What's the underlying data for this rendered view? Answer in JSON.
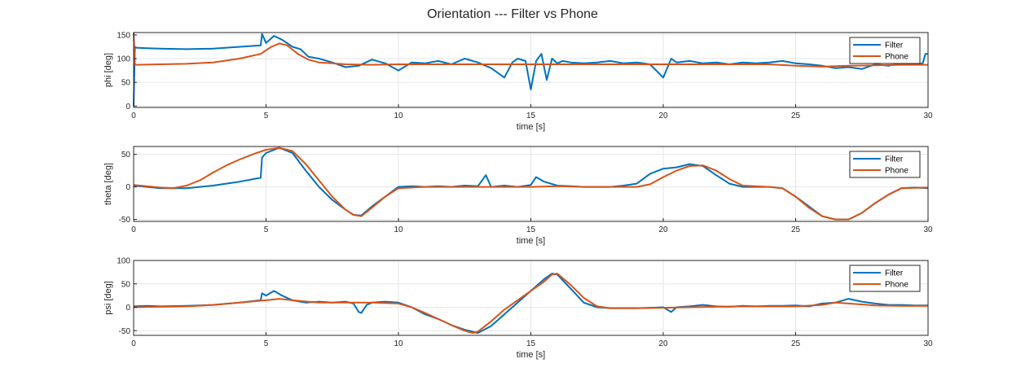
{
  "figure_title": "Orientation --- Filter vs Phone",
  "colors": {
    "filter": "#0072BD",
    "phone": "#D95319",
    "grid": "#e6e6e6",
    "axis": "#262626"
  },
  "chart_data": [
    {
      "type": "line",
      "xlabel": "time [s]",
      "ylabel": "phi [deg]",
      "xlim": [
        0,
        30
      ],
      "ylim": [
        -3,
        155
      ],
      "xticks": [
        0,
        5,
        10,
        15,
        20,
        25,
        30
      ],
      "yticks": [
        0,
        50,
        100,
        150
      ],
      "grid": true,
      "legend": "top-right",
      "series": [
        {
          "name": "Filter",
          "color": "#0072BD",
          "x": [
            0,
            0.05,
            0.1,
            0.5,
            1,
            2,
            3,
            4,
            4.8,
            4.85,
            5,
            5.3,
            5.6,
            6,
            6.3,
            6.6,
            7,
            7.5,
            8,
            8.5,
            9,
            9.5,
            10,
            10.5,
            11,
            11.5,
            12,
            12.5,
            13,
            13.5,
            14,
            14.3,
            14.5,
            14.8,
            15,
            15.2,
            15.4,
            15.6,
            15.8,
            16,
            16.2,
            16.5,
            17,
            17.5,
            18,
            18.5,
            19,
            19.5,
            20,
            20.3,
            20.5,
            21,
            21.5,
            22,
            22.5,
            23,
            23.5,
            24,
            24.5,
            25,
            25.5,
            26,
            26.5,
            27,
            27.5,
            28,
            28.5,
            29,
            29.5,
            29.8,
            29.9,
            30
          ],
          "y": [
            0,
            125,
            123,
            122,
            121,
            120,
            121,
            125,
            128,
            152,
            133,
            148,
            140,
            125,
            120,
            104,
            100,
            92,
            82,
            85,
            98,
            90,
            75,
            92,
            90,
            95,
            88,
            100,
            92,
            80,
            60,
            92,
            100,
            95,
            35,
            95,
            110,
            55,
            100,
            90,
            95,
            92,
            90,
            92,
            95,
            90,
            92,
            88,
            60,
            100,
            92,
            95,
            90,
            92,
            88,
            92,
            90,
            92,
            95,
            90,
            88,
            85,
            80,
            82,
            78,
            88,
            85,
            90,
            88,
            90,
            110,
            110
          ]
        },
        {
          "name": "Phone",
          "color": "#D95319",
          "x": [
            0,
            0.05,
            0.1,
            1,
            2,
            3,
            4,
            4.8,
            5.2,
            5.5,
            5.8,
            6.2,
            6.6,
            7,
            7.5,
            8,
            9,
            10,
            11,
            12,
            13,
            14,
            15,
            16,
            17,
            18,
            19,
            20,
            21,
            22,
            23,
            24,
            25,
            26,
            27,
            28,
            29,
            30
          ],
          "y": [
            155,
            88,
            87,
            88,
            89,
            92,
            100,
            110,
            125,
            132,
            128,
            110,
            98,
            92,
            90,
            88,
            87,
            88,
            88,
            88,
            88,
            88,
            88,
            88,
            88,
            88,
            88,
            88,
            88,
            88,
            88,
            88,
            85,
            83,
            85,
            86,
            87,
            87
          ]
        }
      ]
    },
    {
      "type": "line",
      "xlabel": "time [s]",
      "ylabel": "theta [deg]",
      "xlim": [
        0,
        30
      ],
      "ylim": [
        -53,
        62
      ],
      "xticks": [
        0,
        5,
        10,
        15,
        20,
        25,
        30
      ],
      "yticks": [
        -50,
        0,
        50
      ],
      "grid": true,
      "legend": "top-right",
      "series": [
        {
          "name": "Filter",
          "color": "#0072BD",
          "x": [
            0,
            0.5,
            1,
            1.5,
            2,
            3,
            4,
            4.8,
            4.85,
            5,
            5.5,
            6,
            6.5,
            7,
            7.5,
            8,
            8.3,
            8.6,
            9,
            9.5,
            10,
            10.5,
            11,
            11.5,
            12,
            12.5,
            13,
            13.3,
            13.5,
            14,
            14.5,
            15,
            15.2,
            15.5,
            16,
            16.5,
            17,
            17.5,
            18,
            18.5,
            19,
            19.5,
            20,
            20.5,
            21,
            21.5,
            22,
            22.5,
            23,
            23.5,
            24,
            24.5,
            25,
            25.5,
            26,
            26.5,
            27,
            27.5,
            28,
            28.5,
            29,
            29.5,
            30
          ],
          "y": [
            2,
            0,
            -2,
            -2,
            -2,
            2,
            8,
            14,
            45,
            52,
            60,
            52,
            25,
            0,
            -20,
            -35,
            -43,
            -44,
            -30,
            -15,
            0,
            1,
            0,
            1,
            0,
            2,
            1,
            18,
            0,
            2,
            0,
            3,
            15,
            8,
            2,
            1,
            0,
            0,
            0,
            2,
            5,
            20,
            28,
            30,
            35,
            32,
            18,
            5,
            0,
            0,
            0,
            -2,
            -15,
            -30,
            -45,
            -50,
            -50,
            -40,
            -25,
            -12,
            -2,
            -1,
            -2
          ]
        },
        {
          "name": "Phone",
          "color": "#D95319",
          "x": [
            0,
            1,
            1.5,
            2,
            2.5,
            3,
            3.5,
            4,
            4.5,
            5,
            5.5,
            6,
            6.5,
            7,
            7.5,
            8,
            8.3,
            8.6,
            9,
            9.5,
            10,
            11,
            12,
            13,
            14,
            15,
            16,
            17,
            18,
            19,
            19.5,
            20,
            20.5,
            21,
            21.5,
            22,
            22.5,
            23,
            24,
            24.5,
            25,
            25.5,
            26,
            26.5,
            27,
            27.5,
            28,
            28.5,
            29,
            30
          ],
          "y": [
            3,
            -1,
            -2,
            2,
            10,
            22,
            33,
            42,
            50,
            57,
            60,
            55,
            35,
            10,
            -15,
            -35,
            -43,
            -45,
            -32,
            -15,
            -2,
            0,
            0,
            0,
            0,
            0,
            1,
            0,
            0,
            0,
            4,
            15,
            25,
            32,
            33,
            25,
            12,
            2,
            0,
            -2,
            -15,
            -32,
            -45,
            -50,
            -50,
            -40,
            -25,
            -12,
            -2,
            -1
          ]
        }
      ]
    },
    {
      "type": "line",
      "xlabel": "time [s]",
      "ylabel": "psi [deg]",
      "xlim": [
        0,
        30
      ],
      "ylim": [
        -60,
        100
      ],
      "xticks": [
        0,
        5,
        10,
        15,
        20,
        25,
        30
      ],
      "yticks": [
        -50,
        0,
        50,
        100
      ],
      "grid": true,
      "legend": "top-right",
      "series": [
        {
          "name": "Filter",
          "color": "#0072BD",
          "x": [
            0,
            0.5,
            1,
            2,
            3,
            4,
            4.8,
            4.85,
            5,
            5.3,
            5.6,
            6,
            6.5,
            7,
            7.5,
            8,
            8.3,
            8.5,
            8.6,
            8.8,
            9,
            9.5,
            10,
            10.5,
            11,
            11.5,
            12,
            12.5,
            13,
            13.5,
            14,
            14.3,
            14.5,
            15,
            15.5,
            15.8,
            16,
            16.5,
            17,
            17.5,
            18,
            18.5,
            19,
            19.5,
            20,
            20.3,
            20.5,
            21,
            21.5,
            22,
            22.5,
            23,
            23.5,
            24,
            24.5,
            25,
            25.5,
            26,
            26.5,
            27,
            27.5,
            28,
            28.5,
            29,
            29.5,
            30
          ],
          "y": [
            2,
            3,
            2,
            3,
            5,
            10,
            15,
            30,
            25,
            35,
            25,
            15,
            10,
            12,
            10,
            12,
            8,
            -10,
            -12,
            5,
            10,
            12,
            10,
            0,
            -15,
            -25,
            -38,
            -48,
            -55,
            -40,
            -15,
            0,
            10,
            35,
            60,
            72,
            70,
            40,
            10,
            0,
            -2,
            -2,
            -2,
            -1,
            0,
            -10,
            0,
            2,
            5,
            2,
            1,
            3,
            2,
            3,
            3,
            4,
            2,
            8,
            10,
            18,
            12,
            8,
            5,
            5,
            4,
            4
          ]
        },
        {
          "name": "Phone",
          "color": "#D95319",
          "x": [
            0,
            1,
            2,
            3,
            4,
            5,
            5.5,
            6,
            7,
            8,
            9,
            10,
            10.5,
            11,
            11.5,
            12,
            12.5,
            12.8,
            13,
            13.5,
            14,
            14.5,
            15,
            15.5,
            15.8,
            16,
            16.5,
            17,
            17.5,
            18,
            19,
            20,
            21,
            22,
            23,
            24,
            25,
            26,
            26.5,
            27,
            28,
            29,
            30
          ],
          "y": [
            0,
            1,
            2,
            5,
            10,
            15,
            18,
            15,
            10,
            10,
            10,
            8,
            0,
            -12,
            -25,
            -38,
            -50,
            -55,
            -52,
            -30,
            -5,
            15,
            35,
            55,
            70,
            72,
            48,
            20,
            2,
            -2,
            -2,
            -1,
            0,
            1,
            2,
            2,
            2,
            5,
            10,
            8,
            4,
            3,
            3
          ]
        }
      ]
    }
  ]
}
